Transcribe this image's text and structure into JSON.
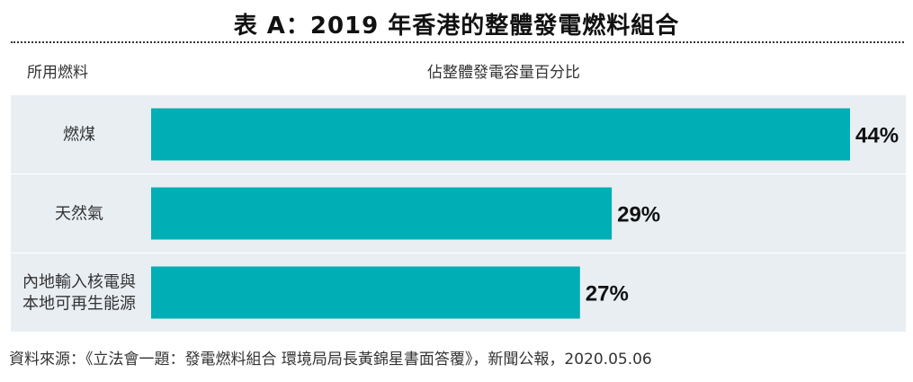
{
  "chart_data": {
    "type": "bar",
    "orientation": "horizontal",
    "title": "表 A：2019 年香港的整體發電燃料組合",
    "category_header": "所用燃料",
    "value_header": "佔整體發電容量百分比",
    "categories": [
      "燃煤",
      "天然氣",
      "內地輸入核電與本地可再生能源"
    ],
    "category_lines": [
      [
        "燃煤"
      ],
      [
        "天然氣"
      ],
      [
        "內地輸入核電與",
        "本地可再生能源"
      ]
    ],
    "values": [
      44,
      29,
      27
    ],
    "value_labels": [
      "44%",
      "29%",
      "27%"
    ],
    "unit": "%",
    "xlim": [
      0,
      44
    ],
    "grid": false,
    "bar_color": "#00aeb5",
    "row_band_color": "#e9eef3"
  },
  "source": "資料來源：《立法會一題：發電燃料組合 環境局局長黃錦星書面答覆》，新聞公報，2020.05.06"
}
